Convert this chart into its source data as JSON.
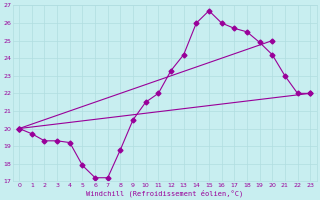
{
  "xlabel": "Windchill (Refroidissement éolien,°C)",
  "background_color": "#c8eef0",
  "grid_color": "#b0dde0",
  "line_color": "#990099",
  "xlim": [
    -0.5,
    23.5
  ],
  "ylim": [
    17,
    27
  ],
  "xticks": [
    0,
    1,
    2,
    3,
    4,
    5,
    6,
    7,
    8,
    9,
    10,
    11,
    12,
    13,
    14,
    15,
    16,
    17,
    18,
    19,
    20,
    21,
    22,
    23
  ],
  "yticks": [
    17,
    18,
    19,
    20,
    21,
    22,
    23,
    24,
    25,
    26,
    27
  ],
  "series1_x": [
    0,
    1,
    2,
    3,
    4,
    5,
    6,
    7,
    8,
    9,
    10,
    11,
    12,
    13,
    14,
    15,
    16,
    17,
    18,
    19,
    20,
    21,
    22,
    23
  ],
  "series1_y": [
    20,
    19.7,
    19.3,
    19.3,
    19.2,
    17.9,
    17.2,
    17.2,
    18.8,
    20.5,
    21.5,
    22.0,
    23.3,
    24.2,
    26.0,
    26.7,
    26.0,
    25.7,
    25.5,
    24.9,
    24.2,
    23.0,
    22.0,
    22.0
  ],
  "series2_x": [
    0,
    20
  ],
  "series2_y": [
    20,
    25.0
  ],
  "series3_x": [
    0,
    23
  ],
  "series3_y": [
    20,
    22.0
  ],
  "marker": "D",
  "markersize": 2.5,
  "linewidth": 0.8
}
